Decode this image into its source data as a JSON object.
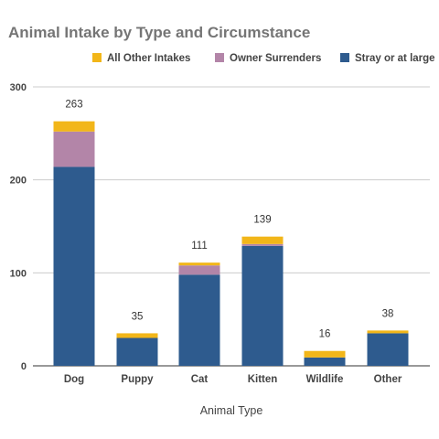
{
  "chart_data": {
    "type": "bar",
    "stacked": true,
    "title": "Animal Intake by Type and Circumstance",
    "xlabel": "Animal Type",
    "ylabel": "",
    "ylim": [
      0,
      300
    ],
    "yticks": [
      0,
      100,
      200,
      300
    ],
    "grid": true,
    "legend_position": "top-right",
    "categories": [
      "Dog",
      "Puppy",
      "Cat",
      "Kitten",
      "Wildlife",
      "Other"
    ],
    "series": [
      {
        "name": "Stray or at large",
        "color": "#2e5b8e",
        "values": [
          214,
          30,
          98,
          129,
          9,
          35
        ]
      },
      {
        "name": "Owner Surrenders",
        "color": "#b385a8",
        "values": [
          38,
          0,
          10,
          2,
          0,
          0
        ]
      },
      {
        "name": "All Other Intakes",
        "color": "#f2b619",
        "values": [
          11,
          5,
          3,
          8,
          7,
          3
        ]
      }
    ],
    "totals": [
      263,
      35,
      111,
      139,
      16,
      38
    ],
    "legend_order": [
      "All Other Intakes",
      "Owner Surrenders",
      "Stray or at large"
    ]
  }
}
